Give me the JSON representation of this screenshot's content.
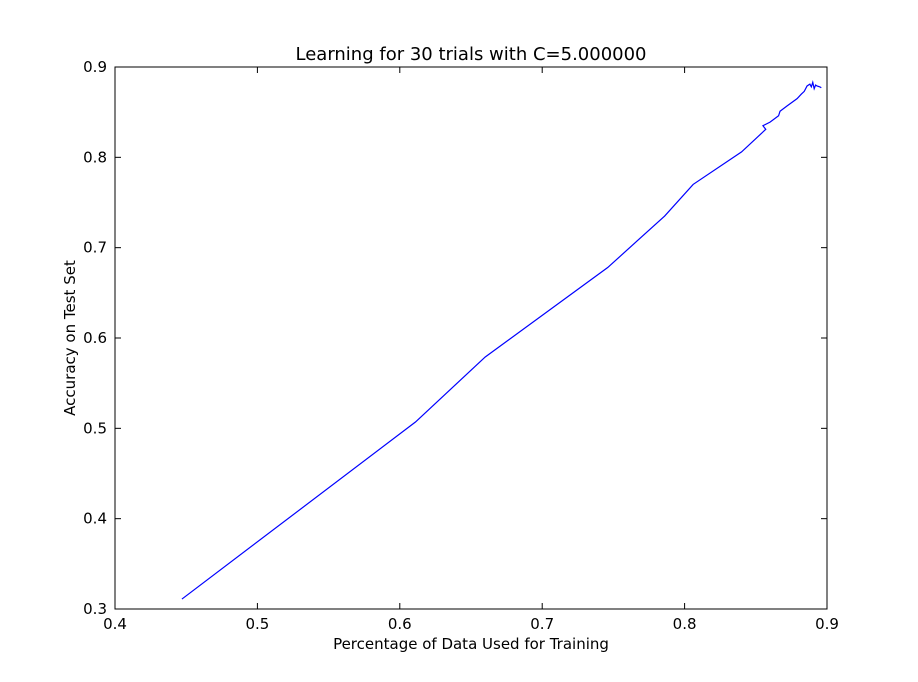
{
  "chart_data": {
    "type": "line",
    "title": "Learning for 30 trials with C=5.000000",
    "xlabel": "Percentage of Data Used for Training",
    "ylabel": "Accuracy on Test Set",
    "xlim": [
      0.4,
      0.9
    ],
    "ylim": [
      0.3,
      0.9
    ],
    "xticks": [
      "0.4",
      "0.5",
      "0.6",
      "0.7",
      "0.8",
      "0.9"
    ],
    "yticks": [
      "0.3",
      "0.4",
      "0.5",
      "0.6",
      "0.7",
      "0.8",
      "0.9"
    ],
    "grid": false,
    "legend": "none",
    "series": [
      {
        "color": "#0000ff",
        "x": [
          0.447,
          0.611,
          0.66,
          0.746,
          0.786,
          0.806,
          0.84,
          0.857,
          0.855,
          0.86,
          0.866,
          0.867,
          0.872,
          0.879,
          0.882,
          0.884,
          0.886,
          0.888,
          0.889,
          0.89,
          0.891,
          0.892,
          0.893,
          0.895,
          0.896
        ],
        "y": [
          0.311,
          0.507,
          0.579,
          0.678,
          0.735,
          0.77,
          0.806,
          0.831,
          0.835,
          0.839,
          0.846,
          0.851,
          0.857,
          0.865,
          0.87,
          0.873,
          0.879,
          0.881,
          0.878,
          0.883,
          0.876,
          0.88,
          0.879,
          0.878,
          0.877
        ]
      }
    ]
  }
}
